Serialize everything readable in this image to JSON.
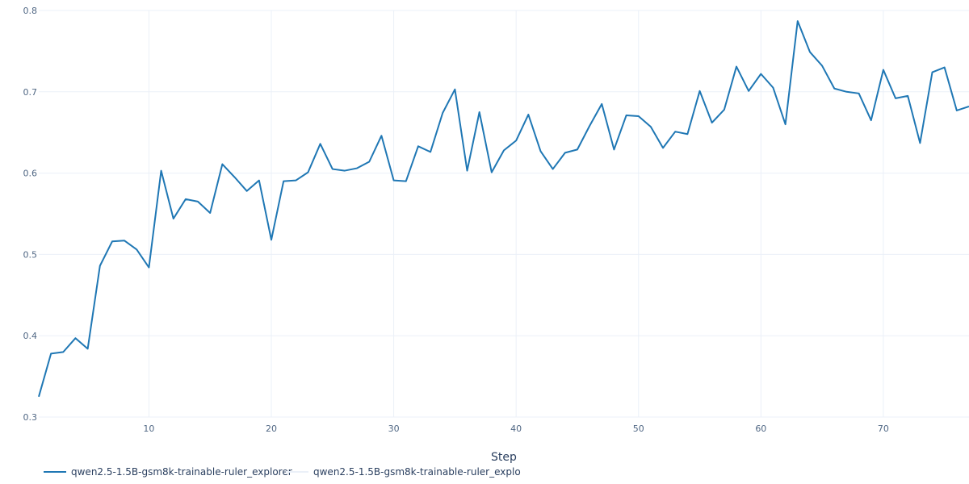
{
  "chart_data": {
    "type": "line",
    "xlabel": "Step",
    "ylabel": "",
    "xlim": [
      1,
      77
    ],
    "ylim": [
      0.3,
      0.8
    ],
    "x_ticks": [
      10,
      20,
      30,
      40,
      50,
      60,
      70
    ],
    "y_ticks": [
      0.3,
      0.4,
      0.5,
      0.6,
      0.7,
      0.8
    ],
    "grid": true,
    "legend_position": "bottom-left",
    "series": [
      {
        "name": "qwen2.5-1.5B-gsm8k-trainable-ruler_explorer",
        "color": "#1f77b4",
        "x": [
          1,
          2,
          3,
          4,
          5,
          6,
          7,
          8,
          9,
          10,
          11,
          12,
          13,
          14,
          15,
          16,
          17,
          18,
          19,
          20,
          21,
          22,
          23,
          24,
          25,
          26,
          27,
          28,
          29,
          30,
          31,
          32,
          33,
          34,
          35,
          36,
          37,
          38,
          39,
          40,
          41,
          42,
          43,
          44,
          45,
          46,
          47,
          48,
          49,
          50,
          51,
          52,
          53,
          54,
          55,
          56,
          57,
          58,
          59,
          60,
          61,
          62,
          63,
          64,
          65,
          66,
          67,
          68,
          69,
          70,
          71,
          72,
          73,
          74,
          75,
          76,
          77
        ],
        "values": [
          0.325,
          0.378,
          0.38,
          0.397,
          0.384,
          0.486,
          0.516,
          0.517,
          0.506,
          0.484,
          0.603,
          0.544,
          0.568,
          0.565,
          0.551,
          0.611,
          0.595,
          0.578,
          0.591,
          0.518,
          0.59,
          0.591,
          0.601,
          0.636,
          0.605,
          0.603,
          0.606,
          0.614,
          0.646,
          0.591,
          0.59,
          0.633,
          0.626,
          0.674,
          0.703,
          0.603,
          0.675,
          0.601,
          0.628,
          0.64,
          0.672,
          0.627,
          0.605,
          0.625,
          0.629,
          0.658,
          0.685,
          0.629,
          0.671,
          0.67,
          0.657,
          0.631,
          0.651,
          0.648,
          0.701,
          0.662,
          0.678,
          0.731,
          0.701,
          0.722,
          0.705,
          0.66,
          0.787,
          0.749,
          0.732,
          0.704,
          0.7,
          0.698,
          0.665,
          0.727,
          0.692,
          0.695,
          0.637,
          0.724,
          0.73,
          0.677,
          0.682
        ]
      },
      {
        "name": "qwen2.5-1.5B-gsm8k-trainable-ruler_explo",
        "color": "#ebf0f8",
        "x": [],
        "values": []
      }
    ]
  },
  "legend": {
    "items": [
      {
        "label": "qwen2.5-1.5B-gsm8k-trainable-ruler_explorer",
        "color": "#1f77b4"
      },
      {
        "label": "qwen2.5-1.5B-gsm8k-trainable-ruler_explo",
        "color": "#ebf0f8"
      }
    ]
  }
}
